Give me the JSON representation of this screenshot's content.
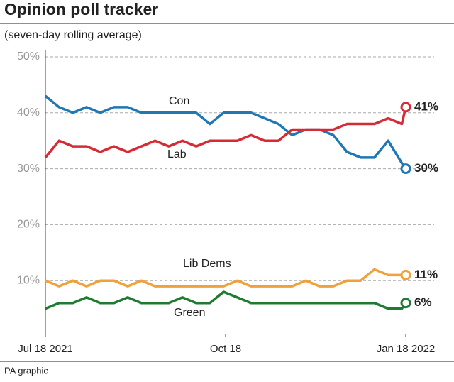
{
  "chart_data": {
    "type": "line",
    "title": "Opinion poll tracker",
    "subtitle": "(seven-day rolling average)",
    "source": "PA graphic",
    "x": [
      "2021-07-18",
      "2021-07-25",
      "2021-08-01",
      "2021-08-08",
      "2021-08-15",
      "2021-08-22",
      "2021-08-29",
      "2021-09-05",
      "2021-09-12",
      "2021-09-19",
      "2021-09-26",
      "2021-10-03",
      "2021-10-10",
      "2021-10-17",
      "2021-10-24",
      "2021-10-31",
      "2021-11-07",
      "2021-11-14",
      "2021-11-21",
      "2021-11-28",
      "2021-12-05",
      "2021-12-12",
      "2021-12-19",
      "2021-12-26",
      "2022-01-02",
      "2022-01-09",
      "2022-01-16",
      "2022-01-18"
    ],
    "xlim": [
      "2021-07-18",
      "2022-01-18"
    ],
    "xticks": [
      {
        "value": "2021-07-18",
        "label": "Jul 18 2021"
      },
      {
        "value": "2021-10-18",
        "label": "Oct 18"
      },
      {
        "value": "2022-01-18",
        "label": "Jan 18 2022"
      }
    ],
    "ylim": [
      0,
      50
    ],
    "yticks": [
      {
        "value": 10,
        "label": "10%"
      },
      {
        "value": 20,
        "label": "20%"
      },
      {
        "value": 30,
        "label": "30%"
      },
      {
        "value": 40,
        "label": "40%"
      },
      {
        "value": 50,
        "label": "50%"
      }
    ],
    "grid": true,
    "series": [
      {
        "name": "Con",
        "color": "#1f78b4",
        "values": [
          43,
          41,
          40,
          41,
          40,
          41,
          41,
          40,
          40,
          40,
          40,
          40,
          38,
          40,
          40,
          40,
          39,
          38,
          36,
          37,
          37,
          36,
          33,
          32,
          32,
          35,
          31,
          30
        ],
        "value_labels": [
          null,
          null,
          null,
          null,
          null,
          null,
          null,
          null,
          null,
          null,
          null,
          null,
          null,
          null,
          null,
          null,
          null,
          null,
          null,
          null,
          null,
          null,
          null,
          null,
          null,
          null,
          null,
          "30%"
        ]
      },
      {
        "name": "Lab",
        "color": "#d62b35",
        "values": [
          32,
          35,
          34,
          34,
          33,
          34,
          33,
          34,
          35,
          34,
          35,
          34,
          35,
          35,
          35,
          36,
          35,
          35,
          37,
          37,
          37,
          37,
          38,
          38,
          38,
          39,
          38,
          41
        ],
        "value_labels": [
          null,
          null,
          null,
          null,
          null,
          null,
          null,
          null,
          null,
          null,
          null,
          null,
          null,
          null,
          null,
          null,
          null,
          null,
          null,
          null,
          null,
          null,
          null,
          null,
          null,
          null,
          null,
          "41%"
        ]
      },
      {
        "name": "Lib Dems",
        "color": "#f0a13c",
        "values": [
          10,
          9,
          10,
          9,
          10,
          10,
          9,
          10,
          9,
          9,
          9,
          9,
          9,
          9,
          10,
          9,
          9,
          9,
          9,
          10,
          9,
          9,
          10,
          10,
          12,
          11,
          11,
          11
        ],
        "value_labels": [
          null,
          null,
          null,
          null,
          null,
          null,
          null,
          null,
          null,
          null,
          null,
          null,
          null,
          null,
          null,
          null,
          null,
          null,
          null,
          null,
          null,
          null,
          null,
          null,
          null,
          null,
          null,
          "11%"
        ]
      },
      {
        "name": "Green",
        "color": "#1e7b31",
        "values": [
          5,
          6,
          6,
          7,
          6,
          6,
          7,
          6,
          6,
          6,
          7,
          6,
          6,
          8,
          7,
          6,
          6,
          6,
          6,
          6,
          6,
          6,
          6,
          6,
          6,
          5,
          5,
          6
        ],
        "value_labels": [
          null,
          null,
          null,
          null,
          null,
          null,
          null,
          null,
          null,
          null,
          null,
          null,
          null,
          null,
          null,
          null,
          null,
          null,
          null,
          null,
          null,
          null,
          null,
          null,
          null,
          null,
          null,
          "6%"
        ]
      }
    ]
  }
}
